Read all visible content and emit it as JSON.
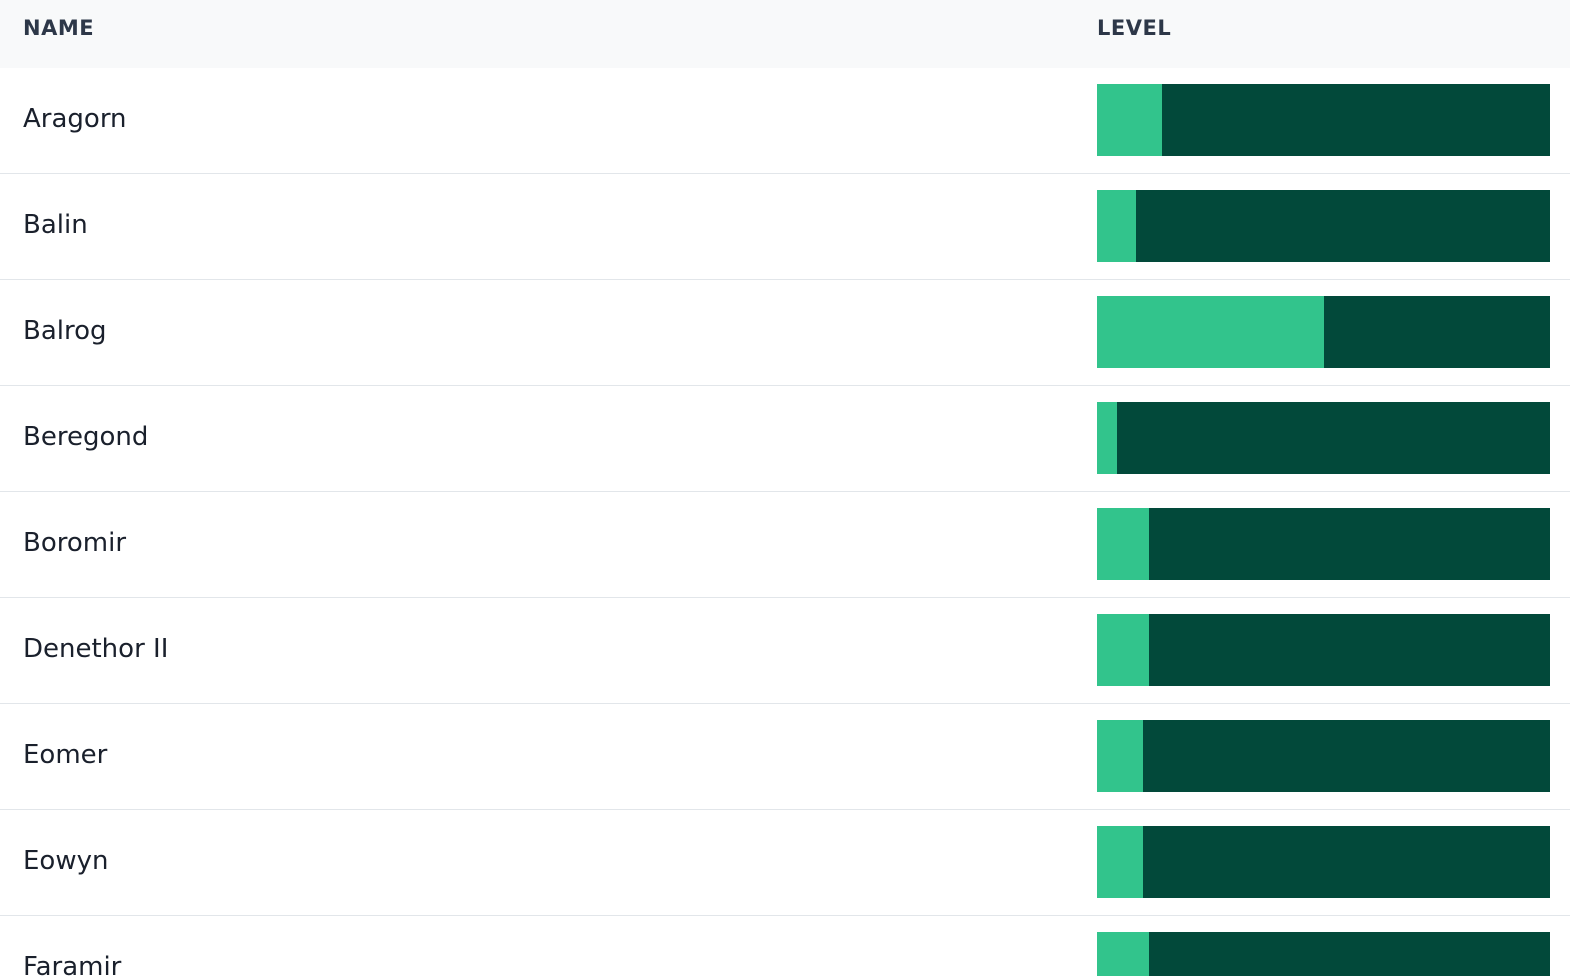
{
  "colors": {
    "header_bg": "#f8f9fa",
    "bar_track": "#02493a",
    "bar_fill": "#32c48c"
  },
  "table": {
    "headers": {
      "name": "NAME",
      "level": "LEVEL"
    },
    "rows": [
      {
        "name": "Aragorn",
        "level_fraction": 0.143
      },
      {
        "name": "Balin",
        "level_fraction": 0.086
      },
      {
        "name": "Balrog",
        "level_fraction": 0.5
      },
      {
        "name": "Beregond",
        "level_fraction": 0.044
      },
      {
        "name": "Boromir",
        "level_fraction": 0.115
      },
      {
        "name": "Denethor II",
        "level_fraction": 0.115
      },
      {
        "name": "Eomer",
        "level_fraction": 0.101
      },
      {
        "name": "Eowyn",
        "level_fraction": 0.101
      },
      {
        "name": "Faramir",
        "level_fraction": 0.115
      }
    ]
  }
}
